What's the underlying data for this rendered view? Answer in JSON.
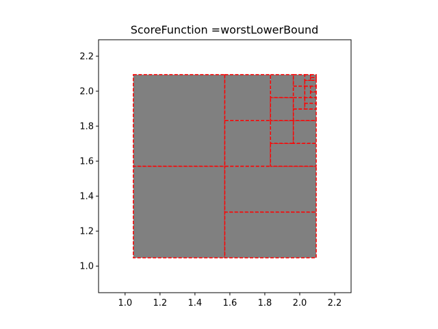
{
  "chart_data": {
    "type": "box-partition",
    "title": "ScoreFunction =worstLowerBound",
    "xlabel": "",
    "ylabel": "",
    "xlim": [
      0.848,
      2.294
    ],
    "ylim": [
      0.848,
      2.294
    ],
    "xticks": [
      1.0,
      1.2,
      1.4,
      1.6,
      1.8,
      2.0,
      2.2
    ],
    "yticks": [
      1.0,
      1.2,
      1.4,
      1.6,
      1.8,
      2.0,
      2.2
    ],
    "xtick_labels": [
      "1.0",
      "1.2",
      "1.4",
      "1.6",
      "1.8",
      "2.0",
      "2.2"
    ],
    "ytick_labels": [
      "1.0",
      "1.2",
      "1.4",
      "1.6",
      "1.8",
      "2.0",
      "2.2"
    ],
    "grid": false,
    "fill_color": "#808080",
    "edge_color": "#ff0000",
    "edge_style": "dashed",
    "boxes": [
      {
        "x": [
          1.0472,
          1.5708
        ],
        "y": [
          1.0472,
          1.5708
        ]
      },
      {
        "x": [
          1.0472,
          1.5708
        ],
        "y": [
          1.5708,
          2.0944
        ]
      },
      {
        "x": [
          1.5708,
          2.0944
        ],
        "y": [
          1.0472,
          1.309
        ]
      },
      {
        "x": [
          1.5708,
          2.0944
        ],
        "y": [
          1.309,
          1.5708
        ]
      },
      {
        "x": [
          1.5708,
          1.8326
        ],
        "y": [
          1.5708,
          1.8326
        ]
      },
      {
        "x": [
          1.5708,
          1.8326
        ],
        "y": [
          1.8326,
          2.0944
        ]
      },
      {
        "x": [
          1.8326,
          2.0944
        ],
        "y": [
          1.5708,
          1.7017
        ]
      },
      {
        "x": [
          1.8326,
          1.9635
        ],
        "y": [
          1.7017,
          1.8326
        ]
      },
      {
        "x": [
          1.9635,
          2.0944
        ],
        "y": [
          1.7017,
          1.8326
        ]
      },
      {
        "x": [
          1.8326,
          1.9635
        ],
        "y": [
          1.8326,
          1.9635
        ]
      },
      {
        "x": [
          1.8326,
          1.9635
        ],
        "y": [
          1.9635,
          2.0944
        ]
      },
      {
        "x": [
          1.9635,
          2.0944
        ],
        "y": [
          1.8326,
          1.8981
        ]
      },
      {
        "x": [
          1.9635,
          2.0289
        ],
        "y": [
          1.8981,
          1.9635
        ]
      },
      {
        "x": [
          2.0289,
          2.0944
        ],
        "y": [
          1.8981,
          1.9308
        ]
      },
      {
        "x": [
          2.0289,
          2.0944
        ],
        "y": [
          1.9308,
          1.9635
        ]
      },
      {
        "x": [
          1.9635,
          2.0289
        ],
        "y": [
          1.9635,
          2.0289
        ]
      },
      {
        "x": [
          1.9635,
          2.0289
        ],
        "y": [
          2.0289,
          2.0944
        ]
      },
      {
        "x": [
          2.0289,
          2.0617
        ],
        "y": [
          1.9635,
          2.0289
        ]
      },
      {
        "x": [
          2.0617,
          2.0944
        ],
        "y": [
          1.9635,
          1.9962
        ]
      },
      {
        "x": [
          2.0617,
          2.0944
        ],
        "y": [
          1.9962,
          2.0289
        ]
      },
      {
        "x": [
          2.0289,
          2.0944
        ],
        "y": [
          2.0289,
          2.0616
        ]
      },
      {
        "x": [
          2.0289,
          2.0617
        ],
        "y": [
          2.0616,
          2.0944
        ]
      },
      {
        "x": [
          2.0617,
          2.0944
        ],
        "y": [
          2.0616,
          2.078
        ]
      },
      {
        "x": [
          2.0617,
          2.0944
        ],
        "y": [
          2.078,
          2.0944
        ]
      }
    ]
  }
}
